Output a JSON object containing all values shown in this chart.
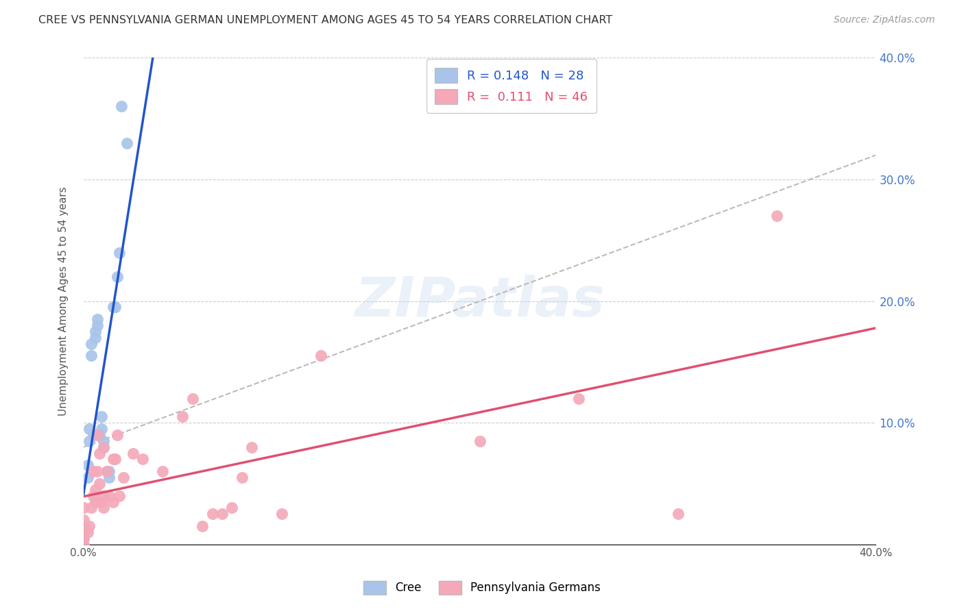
{
  "title": "CREE VS PENNSYLVANIA GERMAN UNEMPLOYMENT AMONG AGES 45 TO 54 YEARS CORRELATION CHART",
  "source": "Source: ZipAtlas.com",
  "ylabel": "Unemployment Among Ages 45 to 54 years",
  "xlim": [
    0.0,
    0.4
  ],
  "ylim": [
    0.0,
    0.4
  ],
  "legend_labels": [
    "Cree",
    "Pennsylvania Germans"
  ],
  "cree_R": 0.148,
  "cree_N": 28,
  "penn_R": 0.111,
  "penn_N": 46,
  "cree_color": "#a8c4e8",
  "penn_color": "#f4a8b8",
  "cree_line_color": "#2255cc",
  "penn_line_color": "#e05070",
  "dash_line_color": "#bbbbbb",
  "background_color": "#ffffff",
  "watermark": "ZIPatlas",
  "cree_x": [
    0.0,
    0.0,
    0.0,
    0.002,
    0.002,
    0.003,
    0.003,
    0.004,
    0.004,
    0.005,
    0.006,
    0.006,
    0.007,
    0.007,
    0.008,
    0.009,
    0.009,
    0.01,
    0.01,
    0.012,
    0.013,
    0.013,
    0.015,
    0.016,
    0.017,
    0.018,
    0.019,
    0.022
  ],
  "cree_y": [
    0.005,
    0.01,
    0.015,
    0.055,
    0.065,
    0.085,
    0.095,
    0.155,
    0.165,
    0.09,
    0.17,
    0.175,
    0.18,
    0.185,
    0.09,
    0.095,
    0.105,
    0.08,
    0.085,
    0.06,
    0.055,
    0.06,
    0.195,
    0.195,
    0.22,
    0.24,
    0.36,
    0.33
  ],
  "penn_x": [
    0.0,
    0.0,
    0.0,
    0.0,
    0.0,
    0.0,
    0.002,
    0.003,
    0.004,
    0.005,
    0.005,
    0.006,
    0.006,
    0.007,
    0.007,
    0.008,
    0.008,
    0.009,
    0.01,
    0.01,
    0.01,
    0.012,
    0.013,
    0.015,
    0.015,
    0.016,
    0.017,
    0.018,
    0.02,
    0.025,
    0.03,
    0.04,
    0.05,
    0.055,
    0.06,
    0.065,
    0.07,
    0.075,
    0.08,
    0.085,
    0.1,
    0.12,
    0.2,
    0.25,
    0.3,
    0.35
  ],
  "penn_y": [
    0.01,
    0.005,
    0.0,
    0.005,
    0.02,
    0.03,
    0.01,
    0.015,
    0.03,
    0.04,
    0.06,
    0.035,
    0.045,
    0.06,
    0.09,
    0.05,
    0.075,
    0.035,
    0.03,
    0.04,
    0.08,
    0.06,
    0.04,
    0.035,
    0.07,
    0.07,
    0.09,
    0.04,
    0.055,
    0.075,
    0.07,
    0.06,
    0.105,
    0.12,
    0.015,
    0.025,
    0.025,
    0.03,
    0.055,
    0.08,
    0.025,
    0.155,
    0.085,
    0.12,
    0.025,
    0.27
  ],
  "right_ytick_labels": [
    "",
    "",
    "10.0%",
    "",
    "20.0%",
    "",
    "30.0%",
    "",
    "40.0%"
  ],
  "ytick_positions": [
    0.0,
    0.05,
    0.1,
    0.15,
    0.2,
    0.25,
    0.3,
    0.35,
    0.4
  ]
}
